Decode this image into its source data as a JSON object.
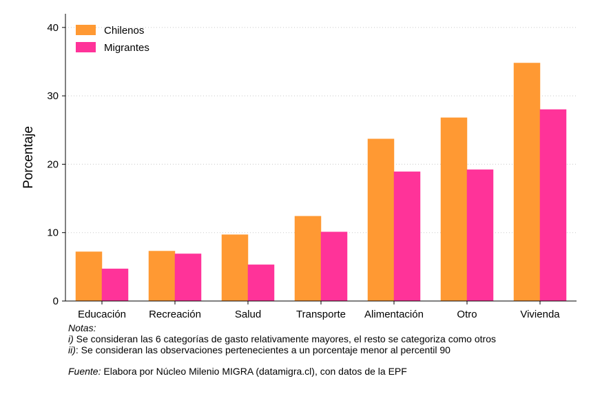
{
  "chart_data": {
    "type": "bar",
    "categories": [
      "Educación",
      "Recreación",
      "Salud",
      "Transporte",
      "Alimentación",
      "Otro",
      "Vivienda"
    ],
    "series": [
      {
        "name": "Chilenos",
        "color": "#FF9933",
        "values": [
          7.2,
          7.3,
          9.7,
          12.4,
          23.7,
          26.8,
          34.8
        ]
      },
      {
        "name": "Migrantes",
        "color": "#FF3399",
        "values": [
          4.7,
          6.9,
          5.3,
          10.1,
          18.9,
          19.2,
          28.0
        ]
      }
    ],
    "ylabel": "Porcentaje",
    "ylim": [
      0,
      42
    ],
    "yticks": [
      0,
      10,
      20,
      30,
      40
    ],
    "grid": true,
    "legend_position": "top-left"
  },
  "notes": {
    "heading": "Notas:",
    "line1_prefix": "i)",
    "line1_text": " Se consideran las 6 categorías de gasto relativamente mayores, el resto se categoriza como otros",
    "line2_prefix": "ii)",
    "line2_text": ": Se consideran las observaciones pertenecientes a un porcentaje menor al percentil 90"
  },
  "source": {
    "label": "Fuente:",
    "text": " Elabora por Núcleo Milenio MIGRA (datamigra.cl), con datos de la EPF"
  }
}
